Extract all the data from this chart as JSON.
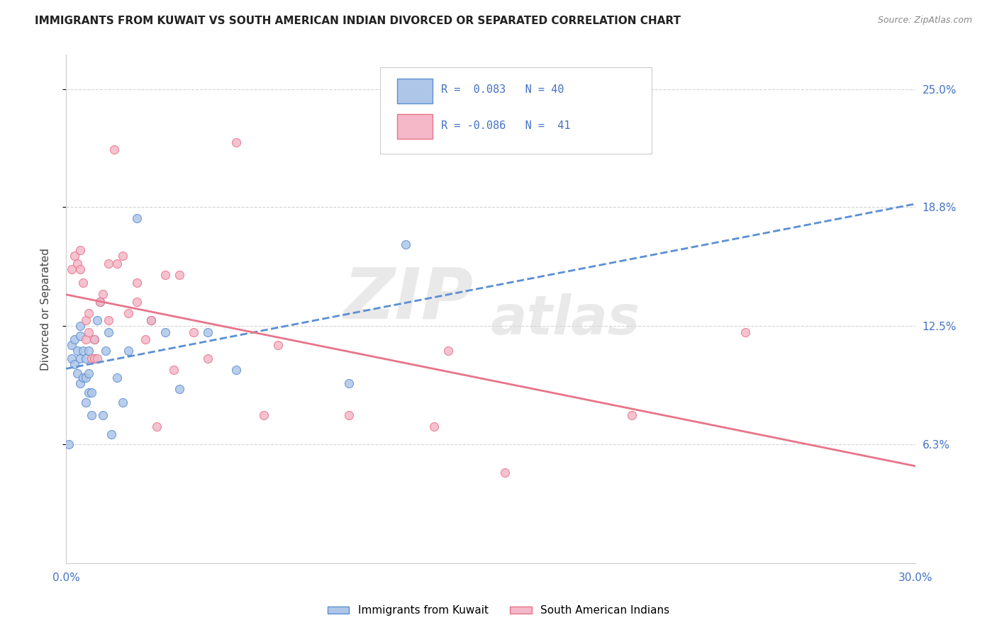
{
  "title": "IMMIGRANTS FROM KUWAIT VS SOUTH AMERICAN INDIAN DIVORCED OR SEPARATED CORRELATION CHART",
  "source": "Source: ZipAtlas.com",
  "ylabel": "Divorced or Separated",
  "ytick_labels": [
    "6.3%",
    "12.5%",
    "18.8%",
    "25.0%"
  ],
  "ytick_values": [
    0.063,
    0.125,
    0.188,
    0.25
  ],
  "xlim": [
    0.0,
    0.3
  ],
  "ylim": [
    0.0,
    0.268
  ],
  "series1_name": "Immigrants from Kuwait",
  "series1_color": "#aec6e8",
  "series1_line_color": "#5b8fd4",
  "series1_R": 0.083,
  "series1_N": 40,
  "series2_name": "South American Indians",
  "series2_color": "#f4b8c8",
  "series2_line_color": "#e8748a",
  "series2_R": -0.086,
  "series2_N": 41,
  "series1_x": [
    0.001,
    0.002,
    0.002,
    0.003,
    0.003,
    0.004,
    0.004,
    0.005,
    0.005,
    0.005,
    0.005,
    0.006,
    0.006,
    0.007,
    0.007,
    0.007,
    0.008,
    0.008,
    0.008,
    0.009,
    0.009,
    0.01,
    0.01,
    0.011,
    0.012,
    0.013,
    0.014,
    0.015,
    0.016,
    0.018,
    0.02,
    0.022,
    0.025,
    0.03,
    0.035,
    0.04,
    0.05,
    0.06,
    0.1,
    0.12
  ],
  "series1_y": [
    0.063,
    0.108,
    0.115,
    0.105,
    0.118,
    0.1,
    0.112,
    0.095,
    0.108,
    0.12,
    0.125,
    0.098,
    0.112,
    0.085,
    0.098,
    0.108,
    0.09,
    0.1,
    0.112,
    0.078,
    0.09,
    0.108,
    0.118,
    0.128,
    0.138,
    0.078,
    0.112,
    0.122,
    0.068,
    0.098,
    0.085,
    0.112,
    0.182,
    0.128,
    0.122,
    0.092,
    0.122,
    0.102,
    0.095,
    0.168
  ],
  "series2_x": [
    0.002,
    0.003,
    0.004,
    0.005,
    0.005,
    0.006,
    0.007,
    0.007,
    0.008,
    0.008,
    0.009,
    0.01,
    0.01,
    0.011,
    0.012,
    0.013,
    0.015,
    0.015,
    0.017,
    0.018,
    0.02,
    0.022,
    0.025,
    0.025,
    0.028,
    0.03,
    0.032,
    0.035,
    0.038,
    0.04,
    0.045,
    0.05,
    0.06,
    0.07,
    0.075,
    0.1,
    0.13,
    0.135,
    0.155,
    0.2,
    0.24
  ],
  "series2_y": [
    0.155,
    0.162,
    0.158,
    0.165,
    0.155,
    0.148,
    0.128,
    0.118,
    0.122,
    0.132,
    0.108,
    0.108,
    0.118,
    0.108,
    0.138,
    0.142,
    0.158,
    0.128,
    0.218,
    0.158,
    0.162,
    0.132,
    0.138,
    0.148,
    0.118,
    0.128,
    0.072,
    0.152,
    0.102,
    0.152,
    0.122,
    0.108,
    0.222,
    0.078,
    0.115,
    0.078,
    0.072,
    0.112,
    0.048,
    0.078,
    0.122
  ],
  "watermark_line1": "ZIP",
  "watermark_line2": "atlas",
  "background_color": "#ffffff",
  "grid_color": "#d0d0d0",
  "title_color": "#222222",
  "axis_label_color": "#4472c4",
  "marker_size": 75
}
